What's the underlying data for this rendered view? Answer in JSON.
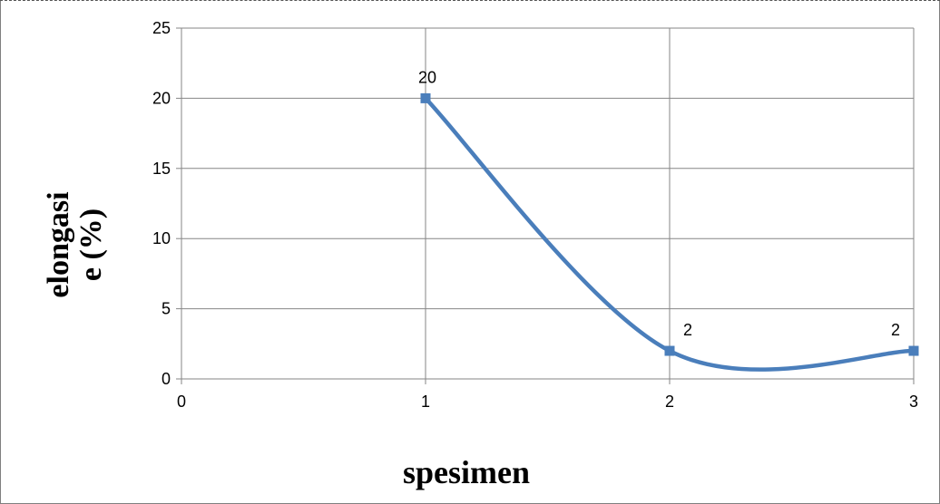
{
  "chart_data": {
    "type": "line",
    "smooth": true,
    "x": [
      1,
      2,
      3
    ],
    "series": [
      {
        "values": [
          20,
          2,
          2
        ],
        "color": "#4a7ebb",
        "marker": "square"
      }
    ],
    "data_labels": [
      "20",
      "2",
      "2"
    ],
    "xlabel": "spesimen",
    "ylabel_lines": [
      "elongasi",
      "e (%)"
    ],
    "xlim": [
      0,
      3
    ],
    "ylim": [
      0,
      25
    ],
    "x_ticks": [
      "0",
      "1",
      "2",
      "3"
    ],
    "y_ticks": [
      "0",
      "5",
      "10",
      "15",
      "20",
      "25"
    ],
    "y_grid": true,
    "legend": "none"
  }
}
